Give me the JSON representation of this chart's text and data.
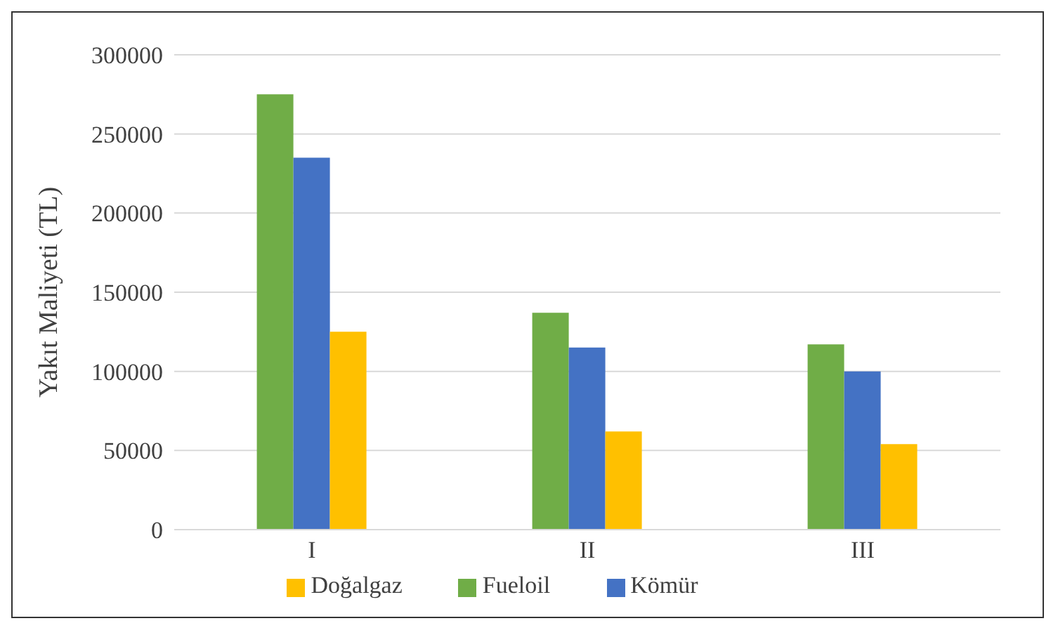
{
  "chart_data": {
    "type": "bar",
    "ylabel": "Yakıt Maliyeti (TL)",
    "categories": [
      "I",
      "II",
      "III"
    ],
    "series": [
      {
        "name": "Fueloil",
        "color": "#70ad47",
        "values": [
          275000,
          137000,
          117000
        ]
      },
      {
        "name": "Kömür",
        "color": "#4472c4",
        "values": [
          235000,
          115000,
          100000
        ]
      },
      {
        "name": "Doğalgaz",
        "color": "#ffc000",
        "values": [
          125000,
          62000,
          54000
        ]
      }
    ],
    "ylim": [
      0,
      300000
    ],
    "yticks": [
      0,
      50000,
      100000,
      150000,
      200000,
      250000,
      300000
    ],
    "grid": "y",
    "legend": "bottom"
  }
}
